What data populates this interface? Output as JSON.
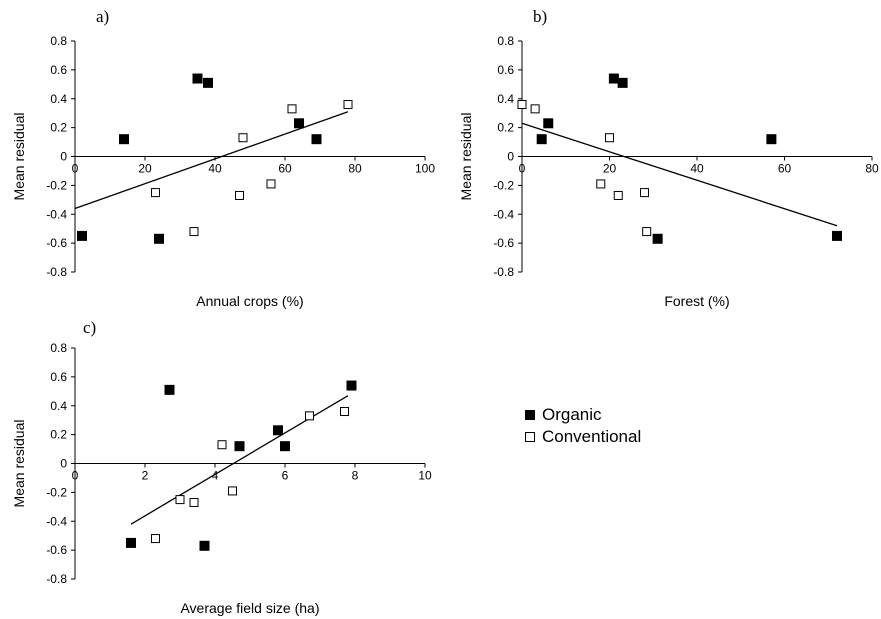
{
  "legend": {
    "organic_label": "Organic",
    "conventional_label": "Conventional"
  },
  "chart_data": [
    {
      "type": "scatter",
      "panel_label": "a)",
      "xlabel": "Annual crops (%)",
      "ylabel": "Mean residual",
      "xlim": [
        0,
        100
      ],
      "ylim": [
        -0.8,
        0.8
      ],
      "xticks": [
        "0",
        "20",
        "40",
        "60",
        "80",
        "100"
      ],
      "yticks": [
        "0.8",
        "0.6",
        "0.4",
        "0.2",
        "0",
        "-0.2",
        "-0.4",
        "-0.6",
        "-0.8"
      ],
      "series": [
        {
          "name": "Organic",
          "marker": "filled-square",
          "color": "#000000",
          "points": [
            [
              2,
              -0.55
            ],
            [
              14,
              0.12
            ],
            [
              24,
              -0.57
            ],
            [
              35,
              0.54
            ],
            [
              38,
              0.51
            ],
            [
              64,
              0.23
            ],
            [
              69,
              0.12
            ]
          ]
        },
        {
          "name": "Conventional",
          "marker": "open-square",
          "color": "#000000",
          "points": [
            [
              23,
              -0.25
            ],
            [
              34,
              -0.52
            ],
            [
              47,
              -0.27
            ],
            [
              48,
              0.13
            ],
            [
              56,
              -0.19
            ],
            [
              62,
              0.33
            ],
            [
              78,
              0.36
            ]
          ]
        }
      ],
      "trendline": {
        "x": [
          0,
          78
        ],
        "y": [
          -0.36,
          0.31
        ]
      }
    },
    {
      "type": "scatter",
      "panel_label": "b)",
      "xlabel": "Forest (%)",
      "ylabel": "Mean residual",
      "xlim": [
        0,
        80
      ],
      "ylim": [
        -0.8,
        0.8
      ],
      "xticks": [
        "0",
        "20",
        "40",
        "60",
        "80"
      ],
      "yticks": [
        "0.8",
        "0.6",
        "0.4",
        "0.2",
        "0",
        "-0.2",
        "-0.4",
        "-0.6",
        "-0.8"
      ],
      "series": [
        {
          "name": "Organic",
          "marker": "filled-square",
          "color": "#000000",
          "points": [
            [
              4.5,
              0.12
            ],
            [
              6,
              0.23
            ],
            [
              21,
              0.54
            ],
            [
              23,
              0.51
            ],
            [
              31,
              -0.57
            ],
            [
              57,
              0.12
            ],
            [
              72,
              -0.55
            ]
          ]
        },
        {
          "name": "Conventional",
          "marker": "open-square",
          "color": "#000000",
          "points": [
            [
              0,
              0.36
            ],
            [
              3,
              0.33
            ],
            [
              18,
              -0.19
            ],
            [
              20,
              0.13
            ],
            [
              22,
              -0.27
            ],
            [
              28,
              -0.25
            ],
            [
              28.5,
              -0.52
            ]
          ]
        }
      ],
      "trendline": {
        "x": [
          0,
          72
        ],
        "y": [
          0.23,
          -0.48
        ]
      }
    },
    {
      "type": "scatter",
      "panel_label": "c)",
      "xlabel": "Average field size (ha)",
      "ylabel": "Mean residual",
      "xlim": [
        0,
        10
      ],
      "ylim": [
        -0.8,
        0.8
      ],
      "xticks": [
        "0",
        "2",
        "4",
        "6",
        "8",
        "10"
      ],
      "yticks": [
        "0.8",
        "0.6",
        "0.4",
        "0.2",
        "0",
        "-0.2",
        "-0.4",
        "-0.6",
        "-0.8"
      ],
      "series": [
        {
          "name": "Organic",
          "marker": "filled-square",
          "color": "#000000",
          "points": [
            [
              1.6,
              -0.55
            ],
            [
              2.7,
              0.51
            ],
            [
              3.7,
              -0.57
            ],
            [
              4.7,
              0.12
            ],
            [
              5.8,
              0.23
            ],
            [
              6,
              0.12
            ],
            [
              7.9,
              0.54
            ]
          ]
        },
        {
          "name": "Conventional",
          "marker": "open-square",
          "color": "#000000",
          "points": [
            [
              2.3,
              -0.52
            ],
            [
              3,
              -0.25
            ],
            [
              3.4,
              -0.27
            ],
            [
              4.2,
              0.13
            ],
            [
              4.5,
              -0.19
            ],
            [
              6.7,
              0.33
            ],
            [
              7.7,
              0.36
            ]
          ]
        }
      ],
      "trendline": {
        "x": [
          1.6,
          7.8
        ],
        "y": [
          -0.42,
          0.47
        ]
      }
    }
  ]
}
